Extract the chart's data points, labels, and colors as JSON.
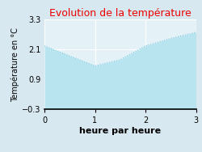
{
  "title": "Evolution de la température",
  "xlabel": "heure par heure",
  "ylabel": "Température en °C",
  "x": [
    0,
    0.5,
    1.0,
    1.5,
    2.0,
    2.5,
    3.0
  ],
  "y": [
    2.25,
    1.85,
    1.45,
    1.7,
    2.25,
    2.55,
    2.8
  ],
  "ylim": [
    -0.3,
    3.3
  ],
  "xlim": [
    0,
    3
  ],
  "yticks": [
    -0.3,
    0.9,
    2.1,
    3.3
  ],
  "xticks": [
    0,
    1,
    2,
    3
  ],
  "line_color": "#7cc8e0",
  "fill_color": "#b8e4f0",
  "title_color": "#ee0000",
  "bg_color": "#d8e8f0",
  "plot_bg_color": "#e4f2f8",
  "grid_color": "#ffffff",
  "title_fontsize": 9,
  "label_fontsize": 7,
  "tick_fontsize": 7,
  "xlabel_fontsize": 8,
  "xlabel_fontweight": "bold"
}
